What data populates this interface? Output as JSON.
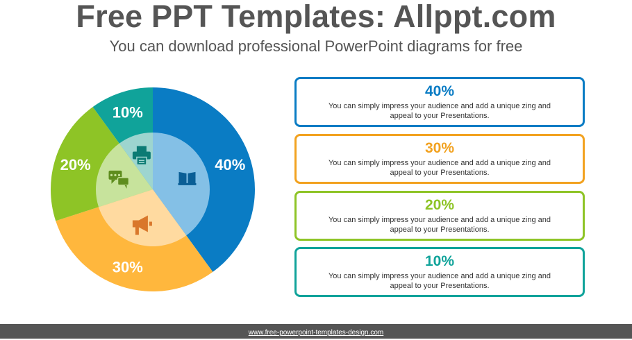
{
  "header": {
    "title": "Free PPT Templates: Allppt.com",
    "subtitle": "You can download professional PowerPoint diagrams for free"
  },
  "chart_data": {
    "type": "pie",
    "title": "",
    "slices": [
      {
        "label": "40%",
        "value": 40,
        "color": "#0a7cc4",
        "inner_color": "#84c0e6",
        "icon": "book-icon"
      },
      {
        "label": "30%",
        "value": 30,
        "color": "#ffb73d",
        "inner_color": "#ffdaa0",
        "icon": "megaphone-icon"
      },
      {
        "label": "20%",
        "value": 20,
        "color": "#8ec426",
        "inner_color": "#c7e39c",
        "icon": "chat-icon"
      },
      {
        "label": "10%",
        "value": 10,
        "color": "#10a39a",
        "inner_color": "#9dd5cf",
        "icon": "printer-icon"
      }
    ]
  },
  "cards": [
    {
      "value": "40%",
      "text": "You can simply impress your audience and add a unique zing and appeal to your Presentations.",
      "color": "#0a7cc4"
    },
    {
      "value": "30%",
      "text": "You can simply impress your audience and add a unique zing and appeal to your Presentations.",
      "color": "#f2a220"
    },
    {
      "value": "20%",
      "text": "You can simply impress your audience and add a unique zing and appeal to your Presentations.",
      "color": "#8ec426"
    },
    {
      "value": "10%",
      "text": "You can simply impress your audience and add a unique zing and appeal to your Presentations.",
      "color": "#10a39a"
    }
  ],
  "footer": {
    "link": "www.free-powerpoint-templates-design.com"
  }
}
